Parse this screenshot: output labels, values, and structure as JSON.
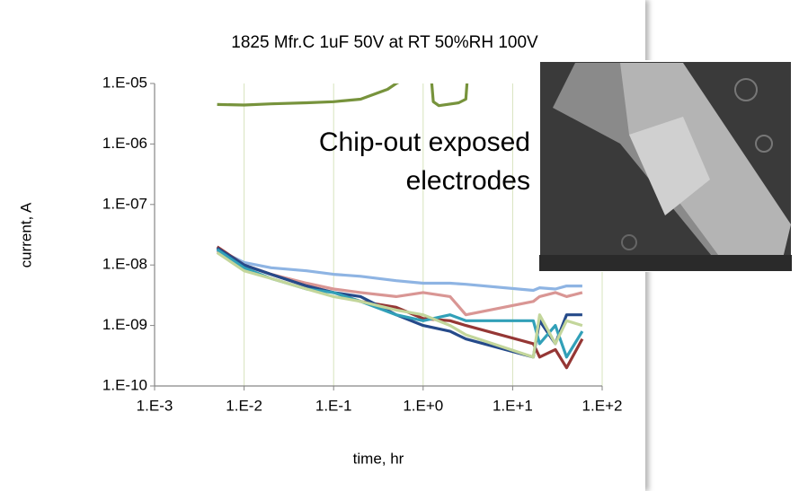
{
  "chart_data": {
    "type": "line",
    "title": "1825 Mfr.C 1uF 50V at RT 50%RH 100V",
    "x_label": "time, hr",
    "y_label": "current, A",
    "annotation": [
      "Chip-out exposed",
      "electrodes"
    ],
    "log_x": true,
    "log_y": true,
    "grid": true,
    "xlim": [
      0.001,
      100
    ],
    "ylim": [
      1e-10,
      1e-05
    ],
    "xticks": [
      {
        "value": 0.001,
        "label": "1.E-3"
      },
      {
        "value": 0.01,
        "label": "1.E-2"
      },
      {
        "value": 0.1,
        "label": "1.E-1"
      },
      {
        "value": 1,
        "label": "1.E+0"
      },
      {
        "value": 10,
        "label": "1.E+1"
      },
      {
        "value": 100,
        "label": "1.E+2"
      }
    ],
    "yticks": [
      {
        "value": 1e-10,
        "label": "1.E-10"
      },
      {
        "value": 1e-09,
        "label": "1.E-09"
      },
      {
        "value": 1e-08,
        "label": "1.E-08"
      },
      {
        "value": 1e-07,
        "label": "1.E-07"
      },
      {
        "value": 1e-06,
        "label": "1.E-06"
      },
      {
        "value": 1e-05,
        "label": "1.E-05"
      }
    ],
    "x": [
      0.005,
      0.01,
      0.02,
      0.05,
      0.1,
      0.2,
      0.5,
      1,
      2,
      3,
      17,
      20,
      30,
      40,
      60
    ],
    "series": [
      {
        "color": "#8eb4e3",
        "values": [
          1.8e-08,
          1.1e-08,
          9e-09,
          8e-09,
          7e-09,
          6.5e-09,
          5.5e-09,
          5e-09,
          5e-09,
          4.8e-09,
          3.8e-09,
          4.2e-09,
          4e-09,
          4.5e-09,
          4.5e-09
        ]
      },
      {
        "color": "#d99694",
        "values": [
          1.7e-08,
          1e-08,
          7e-09,
          5e-09,
          4e-09,
          3.5e-09,
          3e-09,
          3.5e-09,
          3e-09,
          1.5e-09,
          2.5e-09,
          3e-09,
          3.5e-09,
          3e-09,
          3.5e-09
        ]
      },
      {
        "color": "#953735",
        "values": [
          2e-08,
          1e-08,
          7e-09,
          4.5e-09,
          3.5e-09,
          2.5e-09,
          2e-09,
          1.3e-09,
          1.2e-09,
          1e-09,
          5e-10,
          3e-10,
          4e-10,
          2e-10,
          6e-10
        ]
      },
      {
        "color": "#254a8a",
        "values": [
          1.9e-08,
          1e-08,
          7e-09,
          4.5e-09,
          3.5e-09,
          3e-09,
          1.5e-09,
          1e-09,
          8e-10,
          6e-10,
          3e-10,
          1.2e-09,
          5e-10,
          1.5e-09,
          1.5e-09
        ]
      },
      {
        "color": "#31a0b8",
        "values": [
          1.8e-08,
          9e-09,
          6e-09,
          4e-09,
          3.5e-09,
          2.5e-09,
          1.5e-09,
          1.2e-09,
          1.5e-09,
          1.2e-09,
          1.2e-09,
          5e-10,
          1e-09,
          3e-10,
          8e-10
        ]
      },
      {
        "color": "#c3d69b",
        "values": [
          1.6e-08,
          8e-09,
          6e-09,
          4e-09,
          3e-09,
          2.5e-09,
          1.8e-09,
          1.5e-09,
          1e-09,
          7e-10,
          3e-10,
          1.5e-09,
          5e-10,
          1.2e-09,
          1e-09
        ]
      },
      {
        "color": "#77933c",
        "x": [
          0.005,
          0.01,
          0.02,
          0.05,
          0.1,
          0.2,
          0.4,
          0.5,
          1.2,
          1.3,
          1.5,
          2.5,
          3,
          3.2
        ],
        "values": [
          4.5e-06,
          4.4e-06,
          4.6e-06,
          4.8e-06,
          5e-06,
          5.5e-06,
          8e-06,
          1e-05,
          2e-05,
          5e-06,
          4.3e-06,
          4.8e-06,
          5.5e-06,
          2e-05
        ]
      }
    ]
  }
}
